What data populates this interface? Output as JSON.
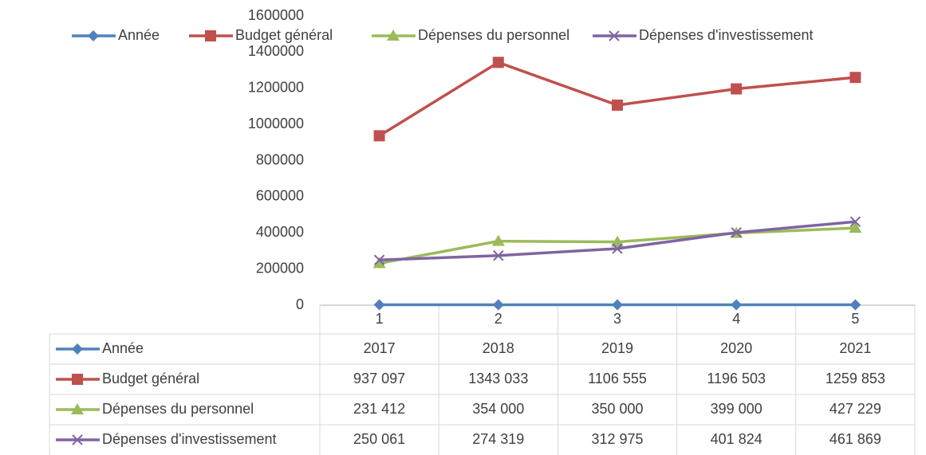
{
  "chart_data": {
    "type": "line",
    "categories": [
      "1",
      "2",
      "3",
      "4",
      "5"
    ],
    "ylim": [
      0,
      1600000
    ],
    "yticks": [
      0,
      200000,
      400000,
      600000,
      800000,
      1000000,
      1200000,
      1400000,
      1600000
    ],
    "legend": "top",
    "series": [
      {
        "name": "Année",
        "color": "#4f81bd",
        "marker": "diamond",
        "values": [
          2017,
          2018,
          2019,
          2020,
          2021
        ]
      },
      {
        "name": "Budget général",
        "color": "#c0504d",
        "marker": "square",
        "values": [
          937097,
          1343033,
          1106555,
          1196503,
          1259853
        ],
        "value_labels": [
          "937 097",
          "1343 033",
          "1106 555",
          "1196 503",
          "1259 853"
        ]
      },
      {
        "name": "Dépenses du personnel",
        "color": "#9bbb59",
        "marker": "triangle",
        "values": [
          231412,
          354000,
          350000,
          399000,
          427229
        ],
        "value_labels": [
          "231 412",
          "354 000",
          "350 000",
          "399 000",
          "427 229"
        ]
      },
      {
        "name": "Dépenses d'investissement",
        "color": "#8064a2",
        "marker": "x",
        "values": [
          250061,
          274319,
          312975,
          401824,
          461869
        ],
        "value_labels": [
          "250 061",
          "274 319",
          "312 975",
          "401 824",
          "461 869"
        ]
      }
    ]
  }
}
